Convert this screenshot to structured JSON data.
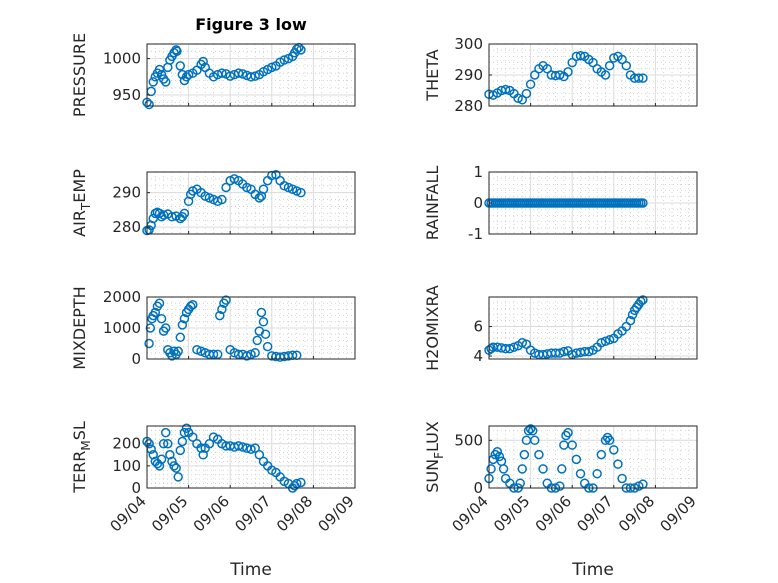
{
  "figure": {
    "title": "Figure 3 low",
    "xlabel": "Time",
    "marker_color": "#0072bd",
    "x_ticks": [
      "09/04",
      "09/05",
      "09/06",
      "09/07",
      "09/08",
      "09/09"
    ]
  },
  "chart_data": [
    {
      "type": "scatter",
      "ylabel": "PRESSURE",
      "xlim": [
        0,
        5
      ],
      "ylim": [
        935,
        1020
      ],
      "yticks": [
        950,
        1000
      ],
      "grid": true,
      "bottom_axis_labels": false,
      "points": [
        [
          0.0,
          940
        ],
        [
          0.05,
          937
        ],
        [
          0.1,
          955
        ],
        [
          0.15,
          968
        ],
        [
          0.2,
          975
        ],
        [
          0.25,
          980
        ],
        [
          0.3,
          985
        ],
        [
          0.35,
          978
        ],
        [
          0.4,
          972
        ],
        [
          0.45,
          968
        ],
        [
          0.5,
          988
        ],
        [
          0.55,
          998
        ],
        [
          0.6,
          1003
        ],
        [
          0.65,
          1008
        ],
        [
          0.7,
          1012
        ],
        [
          0.72,
          1010
        ],
        [
          0.8,
          990
        ],
        [
          0.85,
          978
        ],
        [
          0.9,
          970
        ],
        [
          0.95,
          975
        ],
        [
          1.0,
          978
        ],
        [
          1.1,
          980
        ],
        [
          1.2,
          984
        ],
        [
          1.3,
          992
        ],
        [
          1.35,
          996
        ],
        [
          1.4,
          988
        ],
        [
          1.5,
          980
        ],
        [
          1.6,
          975
        ],
        [
          1.7,
          978
        ],
        [
          1.8,
          980
        ],
        [
          1.9,
          979
        ],
        [
          2.0,
          976
        ],
        [
          2.1,
          978
        ],
        [
          2.2,
          980
        ],
        [
          2.3,
          979
        ],
        [
          2.4,
          977
        ],
        [
          2.5,
          975
        ],
        [
          2.6,
          976
        ],
        [
          2.7,
          978
        ],
        [
          2.8,
          982
        ],
        [
          2.9,
          985
        ],
        [
          3.0,
          988
        ],
        [
          3.1,
          990
        ],
        [
          3.2,
          995
        ],
        [
          3.3,
          998
        ],
        [
          3.4,
          1000
        ],
        [
          3.5,
          1003
        ],
        [
          3.55,
          1008
        ],
        [
          3.6,
          1013
        ],
        [
          3.65,
          1015
        ],
        [
          3.7,
          1012
        ]
      ]
    },
    {
      "type": "scatter",
      "ylabel": "THETA",
      "xlim": [
        0,
        5
      ],
      "ylim": [
        280,
        300
      ],
      "yticks": [
        280,
        290,
        300
      ],
      "grid": true,
      "bottom_axis_labels": false,
      "points": [
        [
          0.0,
          283.8
        ],
        [
          0.1,
          283.5
        ],
        [
          0.2,
          284.2
        ],
        [
          0.3,
          285.0
        ],
        [
          0.4,
          285.3
        ],
        [
          0.5,
          285.0
        ],
        [
          0.6,
          284.0
        ],
        [
          0.7,
          282.5
        ],
        [
          0.8,
          282.0
        ],
        [
          0.9,
          284.0
        ],
        [
          1.0,
          287.0
        ],
        [
          1.1,
          290.0
        ],
        [
          1.2,
          292.0
        ],
        [
          1.3,
          293.0
        ],
        [
          1.4,
          292.0
        ],
        [
          1.5,
          290.0
        ],
        [
          1.6,
          289.8
        ],
        [
          1.7,
          290.0
        ],
        [
          1.8,
          289.5
        ],
        [
          1.9,
          291.0
        ],
        [
          2.0,
          294.0
        ],
        [
          2.1,
          296.0
        ],
        [
          2.2,
          296.2
        ],
        [
          2.3,
          296.0
        ],
        [
          2.4,
          295.0
        ],
        [
          2.5,
          294.0
        ],
        [
          2.6,
          292.0
        ],
        [
          2.7,
          291.0
        ],
        [
          2.8,
          290.0
        ],
        [
          2.9,
          293.0
        ],
        [
          3.0,
          295.5
        ],
        [
          3.1,
          296.0
        ],
        [
          3.2,
          295.0
        ],
        [
          3.3,
          293.0
        ],
        [
          3.4,
          290.0
        ],
        [
          3.5,
          289.0
        ],
        [
          3.6,
          289.0
        ],
        [
          3.7,
          289.0
        ]
      ]
    },
    {
      "type": "scatter",
      "ylabel": "AIR_TEMP",
      "xlim": [
        0,
        5
      ],
      "ylim": [
        278,
        296
      ],
      "yticks": [
        280,
        290
      ],
      "grid": true,
      "bottom_axis_labels": false,
      "points": [
        [
          0.0,
          279.0
        ],
        [
          0.05,
          279.2
        ],
        [
          0.1,
          280.5
        ],
        [
          0.15,
          282.5
        ],
        [
          0.2,
          284.0
        ],
        [
          0.25,
          284.3
        ],
        [
          0.3,
          284.0
        ],
        [
          0.35,
          283.0
        ],
        [
          0.4,
          283.5
        ],
        [
          0.5,
          283.8
        ],
        [
          0.6,
          283.0
        ],
        [
          0.7,
          283.2
        ],
        [
          0.8,
          282.5
        ],
        [
          0.85,
          283.0
        ],
        [
          0.9,
          284.0
        ],
        [
          1.0,
          287.5
        ],
        [
          1.05,
          289.5
        ],
        [
          1.1,
          290.5
        ],
        [
          1.2,
          291.0
        ],
        [
          1.3,
          290.0
        ],
        [
          1.4,
          289.0
        ],
        [
          1.5,
          288.5
        ],
        [
          1.6,
          288.0
        ],
        [
          1.7,
          287.5
        ],
        [
          1.8,
          288.0
        ],
        [
          1.9,
          291.5
        ],
        [
          2.0,
          293.5
        ],
        [
          2.1,
          294.0
        ],
        [
          2.2,
          293.5
        ],
        [
          2.3,
          292.5
        ],
        [
          2.4,
          291.5
        ],
        [
          2.5,
          291.0
        ],
        [
          2.6,
          289.5
        ],
        [
          2.7,
          288.5
        ],
        [
          2.75,
          289.0
        ],
        [
          2.8,
          291.0
        ],
        [
          2.9,
          293.5
        ],
        [
          3.0,
          295.0
        ],
        [
          3.1,
          295.2
        ],
        [
          3.2,
          293.5
        ],
        [
          3.3,
          292.0
        ],
        [
          3.4,
          291.5
        ],
        [
          3.5,
          291.0
        ],
        [
          3.6,
          290.5
        ],
        [
          3.7,
          290.0
        ]
      ]
    },
    {
      "type": "scatter",
      "ylabel": "RAINFALL",
      "xlim": [
        0,
        5
      ],
      "ylim": [
        -1,
        1
      ],
      "yticks": [
        -1,
        0,
        1
      ],
      "grid": true,
      "bottom_axis_labels": false,
      "y_constant": 0,
      "x_range": [
        0,
        3.7
      ]
    },
    {
      "type": "scatter",
      "ylabel": "MIXDEPTH",
      "xlim": [
        0,
        5
      ],
      "ylim": [
        0,
        2000
      ],
      "yticks": [
        0,
        1000,
        2000
      ],
      "grid": true,
      "bottom_axis_labels": false,
      "points": [
        [
          0.05,
          500
        ],
        [
          0.08,
          1000
        ],
        [
          0.12,
          1300
        ],
        [
          0.15,
          1400
        ],
        [
          0.2,
          1500
        ],
        [
          0.25,
          1700
        ],
        [
          0.3,
          1800
        ],
        [
          0.35,
          1300
        ],
        [
          0.4,
          900
        ],
        [
          0.45,
          1000
        ],
        [
          0.5,
          300
        ],
        [
          0.55,
          200
        ],
        [
          0.6,
          100
        ],
        [
          0.65,
          250
        ],
        [
          0.7,
          150
        ],
        [
          0.75,
          250
        ],
        [
          0.8,
          700
        ],
        [
          0.85,
          1100
        ],
        [
          0.9,
          1300
        ],
        [
          0.95,
          1500
        ],
        [
          1.0,
          1600
        ],
        [
          1.05,
          1700
        ],
        [
          1.1,
          1750
        ],
        [
          1.2,
          300
        ],
        [
          1.3,
          250
        ],
        [
          1.4,
          200
        ],
        [
          1.5,
          150
        ],
        [
          1.6,
          150
        ],
        [
          1.7,
          150
        ],
        [
          1.75,
          1400
        ],
        [
          1.8,
          1600
        ],
        [
          1.85,
          1800
        ],
        [
          1.9,
          1900
        ],
        [
          2.0,
          300
        ],
        [
          2.1,
          200
        ],
        [
          2.2,
          150
        ],
        [
          2.3,
          150
        ],
        [
          2.4,
          100
        ],
        [
          2.5,
          150
        ],
        [
          2.6,
          200
        ],
        [
          2.65,
          600
        ],
        [
          2.7,
          900
        ],
        [
          2.75,
          1500
        ],
        [
          2.8,
          1200
        ],
        [
          2.85,
          800
        ],
        [
          2.9,
          400
        ],
        [
          3.0,
          100
        ],
        [
          3.1,
          80
        ],
        [
          3.2,
          60
        ],
        [
          3.3,
          80
        ],
        [
          3.4,
          100
        ],
        [
          3.5,
          120
        ],
        [
          3.6,
          120
        ]
      ]
    },
    {
      "type": "scatter",
      "ylabel": "H2OMIXRA",
      "xlim": [
        0,
        5
      ],
      "ylim": [
        3.8,
        8.0
      ],
      "yticks": [
        4,
        6
      ],
      "grid": true,
      "bottom_axis_labels": false,
      "points": [
        [
          0.0,
          4.4
        ],
        [
          0.05,
          4.5
        ],
        [
          0.1,
          4.6
        ],
        [
          0.2,
          4.6
        ],
        [
          0.3,
          4.55
        ],
        [
          0.4,
          4.5
        ],
        [
          0.5,
          4.5
        ],
        [
          0.6,
          4.6
        ],
        [
          0.7,
          4.7
        ],
        [
          0.8,
          4.9
        ],
        [
          0.9,
          4.8
        ],
        [
          1.0,
          4.4
        ],
        [
          1.1,
          4.2
        ],
        [
          1.2,
          4.1
        ],
        [
          1.3,
          4.1
        ],
        [
          1.4,
          4.15
        ],
        [
          1.5,
          4.2
        ],
        [
          1.6,
          4.2
        ],
        [
          1.7,
          4.2
        ],
        [
          1.8,
          4.3
        ],
        [
          1.9,
          4.35
        ],
        [
          2.0,
          4.1
        ],
        [
          2.1,
          4.2
        ],
        [
          2.2,
          4.25
        ],
        [
          2.3,
          4.3
        ],
        [
          2.4,
          4.3
        ],
        [
          2.5,
          4.4
        ],
        [
          2.6,
          4.6
        ],
        [
          2.7,
          4.9
        ],
        [
          2.8,
          5.0
        ],
        [
          2.9,
          5.1
        ],
        [
          3.0,
          5.2
        ],
        [
          3.1,
          5.5
        ],
        [
          3.2,
          5.7
        ],
        [
          3.3,
          6.0
        ],
        [
          3.4,
          6.4
        ],
        [
          3.45,
          6.8
        ],
        [
          3.5,
          7.1
        ],
        [
          3.55,
          7.3
        ],
        [
          3.6,
          7.5
        ],
        [
          3.65,
          7.7
        ],
        [
          3.7,
          7.8
        ]
      ]
    },
    {
      "type": "scatter",
      "ylabel": "TERR_MSL",
      "xlim": [
        0,
        5
      ],
      "ylim": [
        0,
        280
      ],
      "yticks": [
        0,
        100,
        200
      ],
      "grid": true,
      "bottom_axis_labels": true,
      "points": [
        [
          0.0,
          210
        ],
        [
          0.05,
          200
        ],
        [
          0.1,
          175
        ],
        [
          0.15,
          150
        ],
        [
          0.2,
          120
        ],
        [
          0.25,
          110
        ],
        [
          0.3,
          100
        ],
        [
          0.35,
          130
        ],
        [
          0.4,
          200
        ],
        [
          0.45,
          250
        ],
        [
          0.5,
          200
        ],
        [
          0.55,
          150
        ],
        [
          0.6,
          120
        ],
        [
          0.65,
          100
        ],
        [
          0.7,
          90
        ],
        [
          0.75,
          50
        ],
        [
          0.8,
          170
        ],
        [
          0.85,
          210
        ],
        [
          0.9,
          250
        ],
        [
          0.95,
          270
        ],
        [
          1.0,
          250
        ],
        [
          1.1,
          230
        ],
        [
          1.2,
          200
        ],
        [
          1.3,
          180
        ],
        [
          1.35,
          150
        ],
        [
          1.4,
          180
        ],
        [
          1.5,
          200
        ],
        [
          1.6,
          230
        ],
        [
          1.7,
          220
        ],
        [
          1.8,
          200
        ],
        [
          1.9,
          190
        ],
        [
          2.0,
          190
        ],
        [
          2.1,
          185
        ],
        [
          2.2,
          190
        ],
        [
          2.3,
          185
        ],
        [
          2.4,
          180
        ],
        [
          2.5,
          175
        ],
        [
          2.6,
          180
        ],
        [
          2.7,
          150
        ],
        [
          2.8,
          120
        ],
        [
          2.9,
          100
        ],
        [
          3.0,
          80
        ],
        [
          3.1,
          70
        ],
        [
          3.2,
          50
        ],
        [
          3.3,
          30
        ],
        [
          3.4,
          20
        ],
        [
          3.5,
          0
        ],
        [
          3.55,
          10
        ],
        [
          3.6,
          20
        ],
        [
          3.7,
          25
        ]
      ]
    },
    {
      "type": "scatter",
      "ylabel": "SUN_FLUX",
      "xlim": [
        0,
        5
      ],
      "ylim": [
        0,
        650
      ],
      "yticks": [
        0,
        500
      ],
      "grid": true,
      "bottom_axis_labels": true,
      "points": [
        [
          0.0,
          100
        ],
        [
          0.05,
          200
        ],
        [
          0.1,
          300
        ],
        [
          0.15,
          350
        ],
        [
          0.2,
          380
        ],
        [
          0.25,
          330
        ],
        [
          0.3,
          280
        ],
        [
          0.35,
          200
        ],
        [
          0.4,
          100
        ],
        [
          0.5,
          50
        ],
        [
          0.6,
          0
        ],
        [
          0.7,
          0
        ],
        [
          0.75,
          50
        ],
        [
          0.8,
          200
        ],
        [
          0.85,
          350
        ],
        [
          0.9,
          500
        ],
        [
          0.95,
          600
        ],
        [
          1.0,
          620
        ],
        [
          1.05,
          600
        ],
        [
          1.1,
          500
        ],
        [
          1.2,
          350
        ],
        [
          1.3,
          200
        ],
        [
          1.4,
          50
        ],
        [
          1.5,
          0
        ],
        [
          1.6,
          0
        ],
        [
          1.7,
          20
        ],
        [
          1.75,
          200
        ],
        [
          1.8,
          450
        ],
        [
          1.85,
          550
        ],
        [
          1.9,
          580
        ],
        [
          2.0,
          450
        ],
        [
          2.1,
          300
        ],
        [
          2.2,
          150
        ],
        [
          2.3,
          50
        ],
        [
          2.4,
          0
        ],
        [
          2.5,
          0
        ],
        [
          2.6,
          150
        ],
        [
          2.7,
          350
        ],
        [
          2.8,
          500
        ],
        [
          2.85,
          530
        ],
        [
          2.9,
          500
        ],
        [
          3.0,
          400
        ],
        [
          3.1,
          250
        ],
        [
          3.2,
          100
        ],
        [
          3.3,
          0
        ],
        [
          3.4,
          0
        ],
        [
          3.5,
          0
        ],
        [
          3.6,
          20
        ],
        [
          3.7,
          40
        ]
      ]
    }
  ]
}
